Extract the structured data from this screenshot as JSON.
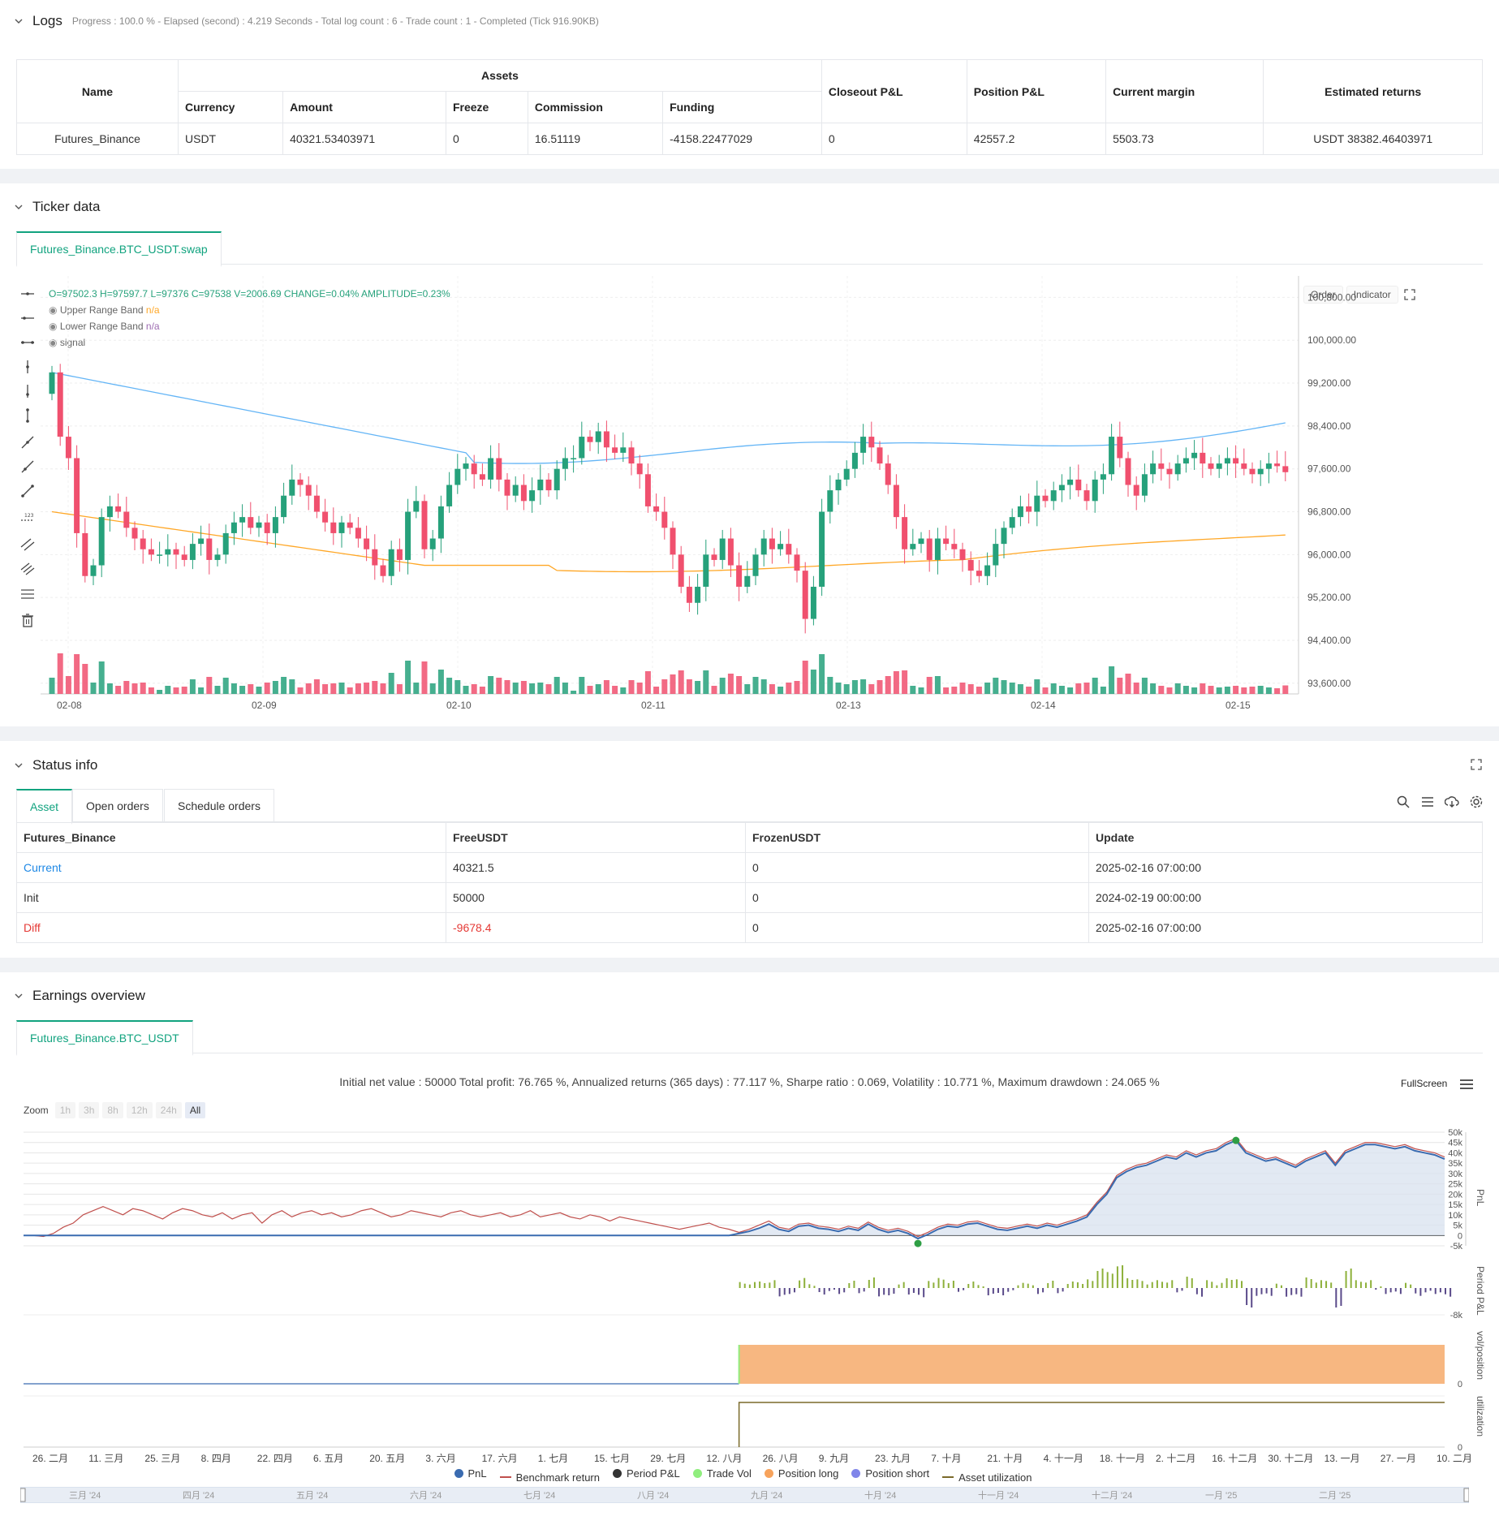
{
  "logs": {
    "title": "Logs",
    "summary": "Progress : 100.0 % - Elapsed (second) : 4.219  Seconds - Total log count : 6 - Trade count : 1 - Completed (Tick 916.90KB)",
    "headers": {
      "name": "Name",
      "assets": "Assets",
      "currency": "Currency",
      "amount": "Amount",
      "freeze": "Freeze",
      "commission": "Commission",
      "funding": "Funding",
      "closeout": "Closeout P&L",
      "position": "Position P&L",
      "margin": "Current margin",
      "est": "Estimated returns"
    },
    "row": {
      "name": "Futures_Binance",
      "currency": "USDT",
      "amount": "40321.53403971",
      "freeze": "0",
      "commission": "16.51119",
      "funding": "-4158.22477029",
      "closeout": "0",
      "position": "42557.2",
      "margin": "5503.73",
      "est": "USDT 38382.46403971"
    }
  },
  "ticker": {
    "title": "Ticker data",
    "tab": "Futures_Binance.BTC_USDT.swap",
    "ohlc": "O=97502.3 H=97597.7 L=97376 C=97538 V=2006.69 CHANGE=0.04% AMPLITUDE=0.23%",
    "upper_label": "Upper Range Band",
    "upper_val": "n/a",
    "lower_label": "Lower Range Band",
    "lower_val": "n/a",
    "signal_label": "signal",
    "order_btn": "Order",
    "indicator_btn": "Indicator",
    "colors": {
      "up": "#26a17b",
      "down": "#f0506e",
      "upper": "#64b5f6",
      "lower": "#ffa726"
    }
  },
  "chart_data": [
    {
      "type": "candlestick",
      "x_ticks": [
        "02-08",
        "02-09",
        "02-10",
        "02-11",
        "02-13",
        "02-14",
        "02-15"
      ],
      "y_ticks": [
        "100,800.00",
        "100,000.00",
        "99,200.00",
        "98,400.00",
        "97,600.00",
        "96,800.00",
        "96,000.00",
        "95,200.00",
        "94,400.00",
        "93,600.00"
      ],
      "ylim": [
        93400,
        101200
      ],
      "close": [
        99400,
        98200,
        97800,
        96400,
        95600,
        95800,
        96700,
        96900,
        96800,
        96500,
        96300,
        96100,
        96000,
        96000,
        96100,
        96000,
        95900,
        96200,
        96300,
        95900,
        96000,
        96400,
        96600,
        96700,
        96500,
        96600,
        96400,
        96700,
        97100,
        97400,
        97300,
        97100,
        96800,
        96600,
        96400,
        96600,
        96500,
        96300,
        96100,
        95800,
        95600,
        96100,
        95900,
        96800,
        97000,
        96100,
        96300,
        96900,
        97300,
        97600,
        97700,
        97500,
        97400,
        97800,
        97400,
        97100,
        97300,
        97000,
        97200,
        97400,
        97200,
        97600,
        97800,
        97800,
        98200,
        98100,
        98300,
        98000,
        97900,
        98000,
        97700,
        97500,
        96900,
        96800,
        96500,
        96000,
        95400,
        95100,
        95400,
        96000,
        95900,
        96300,
        95800,
        95400,
        95600,
        96000,
        96300,
        96100,
        96200,
        96000,
        95700,
        94800,
        95400,
        96800,
        97200,
        97400,
        97600,
        97900,
        98200,
        98000,
        97700,
        97300,
        96700,
        96100,
        96200,
        96300,
        95900,
        96300,
        96200,
        96100,
        95900,
        95700,
        95600,
        95800,
        96200,
        96500,
        96700,
        96900,
        96800,
        97100,
        97000,
        97200,
        97300,
        97400,
        97200,
        97000,
        97400,
        97500,
        98200,
        97800,
        97300,
        97100,
        97500,
        97700,
        97600,
        97500,
        97700,
        97800,
        97900,
        97700,
        97600,
        97700,
        97800,
        97700,
        97600,
        97500,
        97600,
        97700,
        97650,
        97538
      ]
    },
    {
      "type": "line",
      "title": "Initial net value : 50000 Total profit: 76.765 %, Annualized returns (365 days) : 77.117 %, Sharpe ratio : 0.069, Volatility : 10.771 %, Maximum drawdown : 24.065 %",
      "y_ticks": [
        "50k",
        "45k",
        "40k",
        "35k",
        "30k",
        "25k",
        "20k",
        "15k",
        "10k",
        "5k",
        "0",
        "-5k"
      ],
      "x_ticks": [
        "26. 二月",
        "11. 三月",
        "25. 三月",
        "8. 四月",
        "22. 四月",
        "6. 五月",
        "20. 五月",
        "3. 六月",
        "17. 六月",
        "1. 七月",
        "15. 七月",
        "29. 七月",
        "12. 八月",
        "26. 八月",
        "9. 九月",
        "23. 九月",
        "7. 十月",
        "21. 十月",
        "4. 十一月",
        "18. 十一月",
        "2. 十二月",
        "16. 十二月",
        "30. 十二月",
        "13. 一月",
        "27. 一月",
        "10. 二月"
      ],
      "nav_ticks": [
        "三月 '24",
        "四月 '24",
        "五月 '24",
        "六月 '24",
        "七月 '24",
        "八月 '24",
        "九月 '24",
        "十月 '24",
        "十一月 '24",
        "十二月 '24",
        "一月 '25",
        "二月 '25"
      ],
      "series": [
        {
          "name": "PnL",
          "color": "#3a6bb0",
          "values": [
            0,
            0,
            0,
            0,
            0,
            0,
            0,
            0,
            0,
            0,
            0,
            0,
            0,
            0,
            0,
            0,
            0,
            0,
            0,
            0,
            0,
            0,
            0,
            0,
            0,
            0,
            0,
            0,
            0,
            0,
            0,
            0,
            0,
            0,
            0,
            0,
            0,
            0,
            0,
            0,
            0,
            0,
            0,
            0,
            0,
            0,
            0,
            0,
            0,
            0,
            0,
            0,
            0,
            0,
            0,
            0,
            0,
            0,
            0,
            0,
            0,
            0,
            0,
            0,
            0,
            0,
            0,
            0,
            0,
            0,
            0,
            0,
            1000,
            2000,
            3500,
            5500,
            3000,
            2000,
            4500,
            5000,
            3500,
            3000,
            2000,
            3500,
            2500,
            5500,
            3000,
            1500,
            2500,
            1000,
            -1500,
            500,
            3000,
            4500,
            4000,
            5500,
            6000,
            4500,
            3000,
            2500,
            3500,
            4500,
            3500,
            5000,
            4000,
            5500,
            7000,
            9000,
            15000,
            20000,
            28000,
            31000,
            33000,
            34000,
            36000,
            38000,
            37000,
            40000,
            38000,
            40000,
            41000,
            44000,
            46000,
            40000,
            38000,
            36000,
            37000,
            35000,
            33000,
            36000,
            38000,
            40000,
            34000,
            40000,
            42000,
            44000,
            44000,
            43000,
            42000,
            43000,
            41000,
            40000,
            39000,
            37000
          ]
        },
        {
          "name": "Benchmark return",
          "color": "#c0504d",
          "values": [
            0,
            0,
            -500,
            1000,
            4000,
            6000,
            10000,
            12000,
            14000,
            12000,
            10000,
            13000,
            12000,
            10000,
            8000,
            11000,
            13000,
            12000,
            10000,
            9000,
            11000,
            8000,
            10000,
            11000,
            6000,
            10000,
            12000,
            9000,
            11000,
            12000,
            10000,
            11000,
            9000,
            10000,
            12000,
            13000,
            11000,
            9000,
            10000,
            12000,
            11000,
            10000,
            9000,
            11000,
            12000,
            10000,
            9000,
            10000,
            11000,
            9000,
            10000,
            12000,
            9000,
            10000,
            11000,
            9000,
            8000,
            10000,
            9000,
            7000,
            9000,
            8000,
            7000,
            6000,
            5000,
            4000,
            3000,
            4000,
            5000,
            6000,
            4000,
            3000,
            1500,
            3000,
            5000,
            7000,
            4000,
            3000,
            5500,
            6000,
            4500,
            4000,
            3000,
            4500,
            3500,
            6500,
            4000,
            2500,
            3500,
            2000,
            -500,
            1500,
            4000,
            5500,
            5000,
            6500,
            7000,
            5500,
            4000,
            3500,
            4500,
            5500,
            4500,
            6000,
            5000,
            6500,
            8000,
            10000,
            16000,
            21000,
            29000,
            32000,
            34000,
            35000,
            37000,
            39000,
            38000,
            41000,
            39000,
            41000,
            42000,
            45000,
            47000,
            41000,
            39000,
            37000,
            38000,
            36000,
            34000,
            37000,
            39000,
            41000,
            35000,
            41000,
            43000,
            45000,
            45000,
            44000,
            43000,
            44000,
            42000,
            41000,
            40000,
            38000
          ]
        }
      ]
    }
  ],
  "status": {
    "title": "Status info",
    "tabs": [
      "Asset",
      "Open orders",
      "Schedule orders"
    ],
    "headers": [
      "Futures_Binance",
      "FreeUSDT",
      "FrozenUSDT",
      "Update"
    ],
    "rows": [
      [
        "Current",
        "40321.5",
        "0",
        "2025-02-16 07:00:00"
      ],
      [
        "Init",
        "50000",
        "0",
        "2024-02-19 00:00:00"
      ],
      [
        "Diff",
        "-9678.4",
        "0",
        "2025-02-16 07:00:00"
      ]
    ]
  },
  "earnings": {
    "title": "Earnings overview",
    "tab": "Futures_Binance.BTC_USDT",
    "fullscreen": "FullScreen",
    "zoom_label": "Zoom",
    "zoom_opts": [
      "1h",
      "3h",
      "8h",
      "12h",
      "24h",
      "All"
    ],
    "pane_labels": [
      "PnL",
      "Period P&L",
      "vol/position",
      "utilization"
    ],
    "period_min": "-8k",
    "vol_zero": "0",
    "util_zero": "0",
    "legend": [
      {
        "label": "PnL",
        "color": "#3a6bb0"
      },
      {
        "label": "Benchmark return",
        "color": "#c0504d"
      },
      {
        "label": "Period P&L",
        "color": "#333"
      },
      {
        "label": "Trade Vol",
        "color": "#90ee7e"
      },
      {
        "label": "Position long",
        "color": "#f7a35c"
      },
      {
        "label": "Position short",
        "color": "#8085e9"
      },
      {
        "label": "Asset utilization",
        "color": "#7a6a2a"
      }
    ]
  }
}
